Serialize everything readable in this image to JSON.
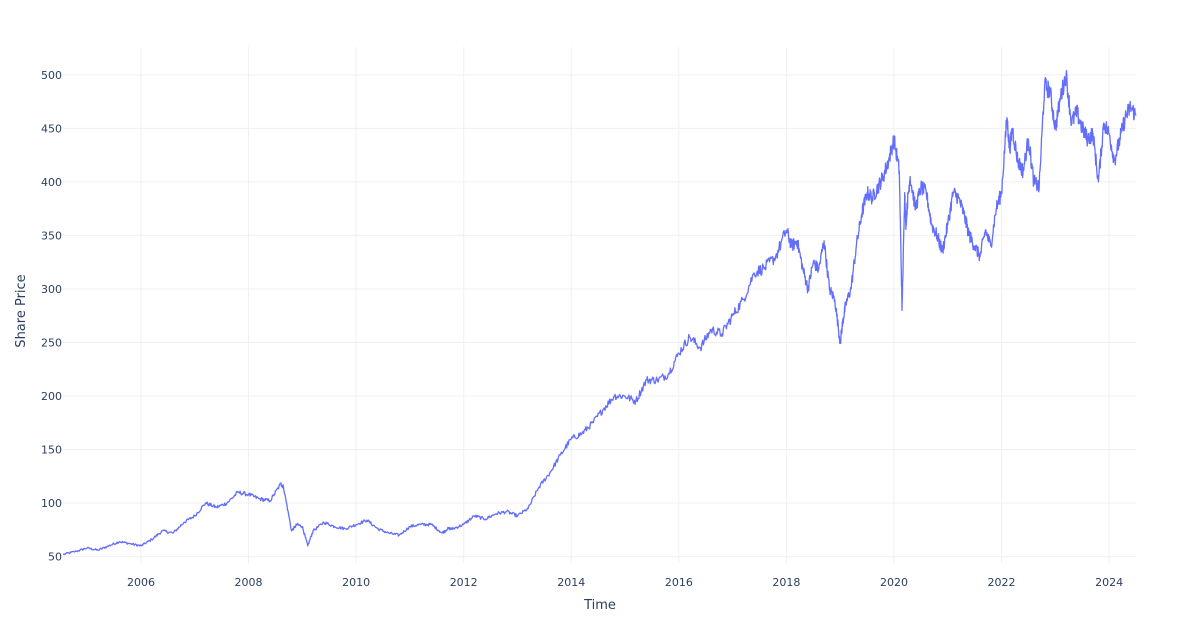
{
  "chart_data": {
    "type": "line",
    "title": "",
    "xlabel": "Time",
    "ylabel": "Share Price",
    "xlim": [
      2004.55,
      2024.5
    ],
    "ylim": [
      44,
      526
    ],
    "x_ticks": [
      "2006",
      "2008",
      "2010",
      "2012",
      "2014",
      "2016",
      "2018",
      "2020",
      "2022",
      "2024"
    ],
    "y_ticks": [
      "50",
      "100",
      "150",
      "200",
      "250",
      "300",
      "350",
      "400",
      "450",
      "500"
    ],
    "grid": true,
    "legend": "none",
    "colors": {
      "series": "#636efa",
      "grid": "#eef0f4",
      "text": "#2a3f5f"
    },
    "series": [
      {
        "x": [
          2004.55,
          2004.8,
          2005.0,
          2005.2,
          2005.4,
          2005.6,
          2005.8,
          2006.0,
          2006.2,
          2006.4,
          2006.6,
          2006.8,
          2007.0,
          2007.2,
          2007.4,
          2007.6,
          2007.8,
          2008.0,
          2008.2,
          2008.4,
          2008.6,
          2008.65,
          2008.8,
          2008.9,
          2009.0,
          2009.1,
          2009.2,
          2009.4,
          2009.6,
          2009.8,
          2010.0,
          2010.2,
          2010.4,
          2010.6,
          2010.8,
          2011.0,
          2011.2,
          2011.4,
          2011.6,
          2011.7,
          2011.8,
          2012.0,
          2012.2,
          2012.4,
          2012.6,
          2012.8,
          2013.0,
          2013.2,
          2013.4,
          2013.6,
          2013.8,
          2014.0,
          2014.2,
          2014.4,
          2014.6,
          2014.8,
          2015.0,
          2015.2,
          2015.4,
          2015.6,
          2015.8,
          2016.0,
          2016.2,
          2016.4,
          2016.6,
          2016.8,
          2017.0,
          2017.2,
          2017.4,
          2017.6,
          2017.8,
          2018.0,
          2018.1,
          2018.2,
          2018.3,
          2018.4,
          2018.5,
          2018.6,
          2018.7,
          2018.8,
          2018.9,
          2019.0,
          2019.05,
          2019.1,
          2019.2,
          2019.3,
          2019.4,
          2019.5,
          2019.6,
          2019.7,
          2019.8,
          2019.9,
          2020.0,
          2020.1,
          2020.15,
          2020.2,
          2020.22,
          2020.25,
          2020.3,
          2020.4,
          2020.5,
          2020.6,
          2020.7,
          2020.8,
          2020.9,
          2021.0,
          2021.1,
          2021.2,
          2021.3,
          2021.4,
          2021.5,
          2021.6,
          2021.7,
          2021.8,
          2021.9,
          2022.0,
          2022.1,
          2022.15,
          2022.2,
          2022.3,
          2022.4,
          2022.5,
          2022.6,
          2022.7,
          2022.8,
          2022.9,
          2023.0,
          2023.1,
          2023.2,
          2023.3,
          2023.4,
          2023.5,
          2023.6,
          2023.7,
          2023.8,
          2023.9,
          2024.0,
          2024.1,
          2024.2,
          2024.3,
          2024.4,
          2024.5
        ],
        "values": [
          52,
          55,
          58,
          56,
          60,
          64,
          62,
          60,
          66,
          74,
          72,
          82,
          88,
          100,
          96,
          100,
          110,
          108,
          104,
          102,
          118,
          115,
          74,
          80,
          78,
          60,
          74,
          82,
          78,
          76,
          80,
          84,
          76,
          72,
          70,
          78,
          80,
          80,
          72,
          76,
          76,
          80,
          88,
          85,
          90,
          92,
          88,
          95,
          115,
          128,
          145,
          160,
          165,
          175,
          188,
          200,
          200,
          195,
          215,
          215,
          220,
          240,
          255,
          245,
          262,
          258,
          275,
          290,
          315,
          320,
          330,
          355,
          340,
          345,
          320,
          300,
          325,
          318,
          345,
          300,
          290,
          250,
          270,
          285,
          300,
          340,
          370,
          390,
          385,
          395,
          405,
          420,
          440,
          410,
          280,
          390,
          360,
          380,
          405,
          375,
          395,
          390,
          360,
          350,
          335,
          360,
          390,
          385,
          370,
          350,
          340,
          330,
          355,
          340,
          375,
          390,
          460,
          430,
          450,
          420,
          410,
          440,
          400,
          395,
          490,
          485,
          450,
          480,
          500,
          455,
          465,
          450,
          440,
          445,
          400,
          455,
          445,
          420,
          440,
          460,
          470,
          462
        ]
      }
    ]
  }
}
